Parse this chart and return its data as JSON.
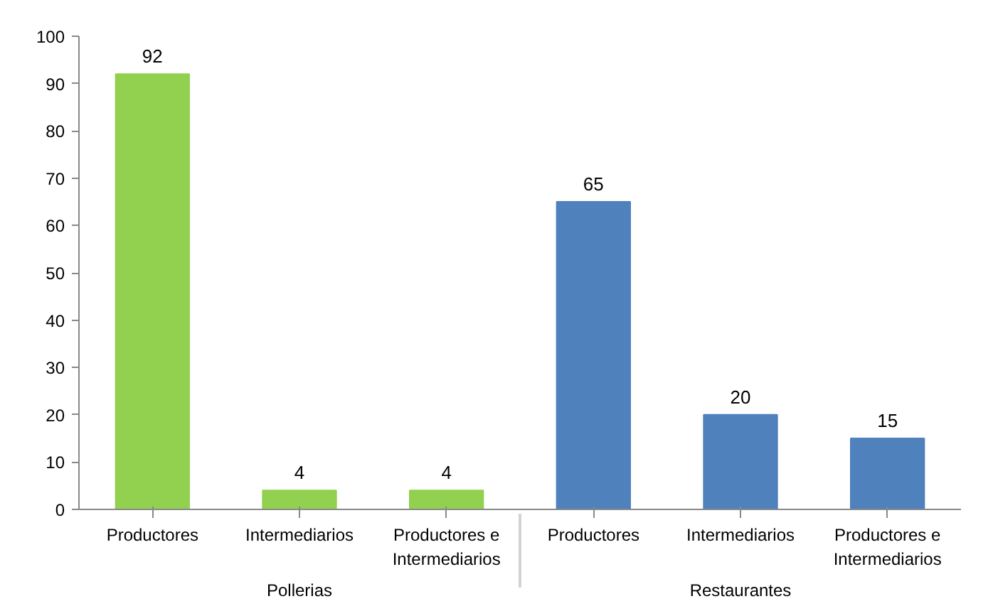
{
  "chart_data": {
    "type": "bar",
    "categories": [
      "Productores",
      "Intermediarios",
      "Productores e Intermediarios",
      "Productores",
      "Intermediarios",
      "Productores e Intermediarios"
    ],
    "values": [
      92,
      4,
      4,
      65,
      20,
      15
    ],
    "colors": [
      "#92d050",
      "#92d050",
      "#92d050",
      "#4f81bd",
      "#4f81bd",
      "#4f81bd"
    ],
    "annotations": [
      "Pollerias",
      "Restaurantes"
    ],
    "ylim": [
      0,
      100
    ],
    "yticks": [
      0,
      10,
      20,
      30,
      40,
      50,
      60,
      70,
      80,
      90,
      100
    ],
    "data_labels": true,
    "grid": false
  }
}
